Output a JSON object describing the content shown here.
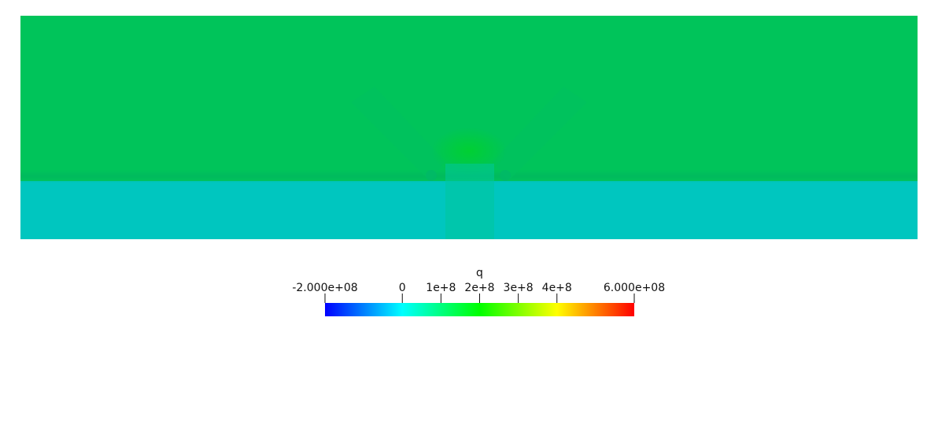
{
  "chart_data": {
    "type": "heatmap",
    "scalar_name": "q",
    "colormap": {
      "range": [
        -200000000,
        600000000
      ],
      "stops": [
        {
          "value": -200000000,
          "color": "#0000ff"
        },
        {
          "value": 0,
          "color": "#00ffff"
        },
        {
          "value": 200000000,
          "color": "#00ff00"
        },
        {
          "value": 400000000,
          "color": "#ffff00"
        },
        {
          "value": 600000000,
          "color": "#ff0000"
        }
      ]
    },
    "ticks": [
      {
        "value": -200000000,
        "label": "-2.000e+08"
      },
      {
        "value": 0,
        "label": "0"
      },
      {
        "value": 100000000,
        "label": "1e+8"
      },
      {
        "value": 200000000,
        "label": "2e+8"
      },
      {
        "value": 300000000,
        "label": "3e+8"
      },
      {
        "value": 400000000,
        "label": "4e+8"
      },
      {
        "value": 600000000,
        "label": "6.000e+08"
      }
    ],
    "regions": [
      {
        "name": "upper layer",
        "approx_value": 140000000,
        "color": "#00c45a"
      },
      {
        "name": "lower layer",
        "approx_value": 60000000,
        "color": "#00c6bf"
      }
    ],
    "colorbar_orientation": "horizontal",
    "colorbar_placement": "bottom-center"
  }
}
